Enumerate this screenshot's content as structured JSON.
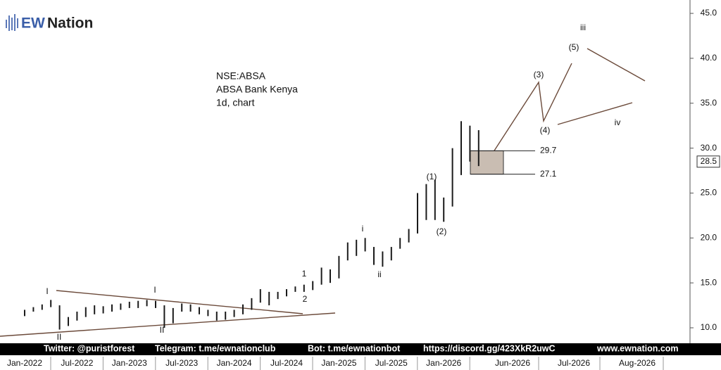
{
  "logo": {
    "mark": "EW",
    "text": "Nation"
  },
  "info": [
    "NSE:ABSA",
    "ABSA Bank Kenya",
    "1d, chart"
  ],
  "footer": [
    "Twitter: @puristforest",
    "Telegram: t.me/ewnationclub",
    "Bot: t.me/ewnationbot",
    "https://discord.gg/423XkR2uwC",
    "www.ewnation.com"
  ],
  "chart_data": {
    "type": "range-bar",
    "categories": [
      "Jan-2022",
      null,
      null,
      null,
      null,
      null,
      "Jul-2022",
      null,
      null,
      null,
      null,
      null,
      "Jan-2023",
      null,
      null,
      null,
      null,
      null,
      "Jul-2023",
      null,
      null,
      null,
      null,
      null,
      "Jan-2024",
      null,
      null,
      null,
      null,
      null,
      "Jul-2024",
      null,
      null,
      null,
      null,
      null,
      "Jan-2025",
      null,
      null,
      null,
      null,
      null,
      "Jul-2025",
      null,
      null,
      null,
      null,
      null,
      "Jan-2026",
      null,
      null,
      null,
      null
    ],
    "high": [
      12.0,
      12.3,
      12.6,
      13.1,
      12.5,
      11.2,
      11.8,
      12.3,
      12.5,
      12.4,
      12.6,
      12.7,
      12.9,
      13.0,
      13.1,
      13.0,
      12.5,
      12.2,
      12.7,
      12.6,
      12.3,
      12.0,
      11.8,
      11.8,
      12.0,
      12.6,
      13.3,
      14.3,
      14.0,
      14.0,
      14.3,
      14.6,
      14.8,
      15.2,
      16.7,
      16.5,
      18.0,
      19.5,
      19.8,
      20.0,
      19.0,
      18.5,
      19.0,
      20.0,
      21.0,
      25.0,
      26.0,
      26.5,
      24.5,
      30.0,
      33.0,
      32.5,
      32.0
    ],
    "low": [
      11.3,
      11.8,
      12.0,
      12.3,
      9.8,
      10.2,
      10.8,
      11.2,
      11.5,
      11.6,
      11.8,
      12.0,
      12.2,
      12.2,
      12.4,
      12.2,
      10.0,
      10.5,
      11.8,
      11.8,
      11.5,
      11.3,
      10.8,
      10.9,
      11.2,
      11.5,
      12.0,
      12.8,
      12.5,
      13.2,
      13.5,
      14.0,
      14.0,
      14.2,
      14.8,
      15.0,
      15.5,
      17.5,
      18.0,
      18.5,
      17.0,
      16.8,
      17.5,
      18.8,
      19.5,
      20.5,
      22.0,
      22.0,
      21.8,
      23.5,
      27.0,
      28.5,
      28.0
    ],
    "future_xticks": [
      "Jun-2026",
      "Jul-2026",
      "Aug-2026"
    ],
    "ylim": [
      8.12,
      46.49
    ],
    "yticks": [
      {
        "value": 10,
        "label": "10.0"
      },
      {
        "value": 15,
        "label": "15.0"
      },
      {
        "value": 20,
        "label": "20.0"
      },
      {
        "value": 25,
        "label": "25.0"
      },
      {
        "value": 30,
        "label": "30.0"
      },
      {
        "value": 35,
        "label": "35.0"
      },
      {
        "value": 40,
        "label": "40.0"
      },
      {
        "value": 45,
        "label": "45.0"
      }
    ],
    "levels": [
      29.7,
      27.1
    ],
    "last_price": 28.5,
    "wave_labels": [
      "I",
      "II",
      "I",
      "II",
      "1",
      "2",
      "i",
      "ii",
      "(1)",
      "(2)",
      "(3)",
      "(4)",
      "(5)",
      "iii",
      "iv"
    ],
    "color": "#1a1a1a"
  }
}
